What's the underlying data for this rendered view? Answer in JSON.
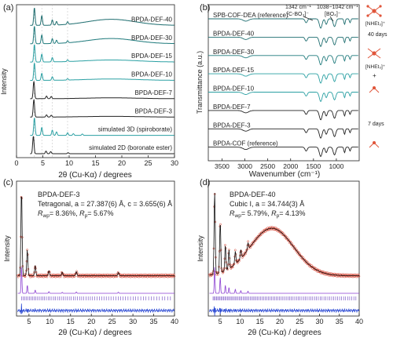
{
  "chart_data": [
    {
      "panel": "(a)",
      "type": "line",
      "xlabel": "2θ (Cu-Kα) / degrees",
      "ylabel": "Intensity",
      "xlim": [
        0,
        30
      ],
      "xticks": [
        0,
        5,
        10,
        15,
        20,
        25,
        30
      ],
      "series": [
        {
          "name": "BPDA-DEF-40",
          "color": "#1f6e70",
          "peaks": [
            [
              3.4,
              1.0
            ],
            [
              4.8,
              0.55
            ],
            [
              6.8,
              0.3
            ],
            [
              7.6,
              0.2
            ],
            [
              9.7,
              0.15
            ]
          ],
          "hump": [
            18,
            4.5,
            0.35
          ]
        },
        {
          "name": "BPDA-DEF-30",
          "color": "#1f7a7c",
          "peaks": [
            [
              3.4,
              1.0
            ],
            [
              4.8,
              0.5
            ],
            [
              6.8,
              0.28
            ],
            [
              7.6,
              0.18
            ],
            [
              9.7,
              0.12
            ]
          ],
          "hump": [
            18,
            4.5,
            0.3
          ]
        },
        {
          "name": "BPDA-DEF-15",
          "color": "#2aa0a3",
          "peaks": [
            [
              3.4,
              1.0
            ],
            [
              4.8,
              0.45
            ],
            [
              6.8,
              0.25
            ],
            [
              9.7,
              0.1
            ]
          ],
          "hump": [
            18,
            5,
            0.12
          ]
        },
        {
          "name": "BPDA-DEF-10",
          "color": "#2aa0a3",
          "peaks": [
            [
              3.4,
              1.0
            ],
            [
              4.8,
              0.4
            ],
            [
              6.8,
              0.2
            ],
            [
              9.7,
              0.08
            ]
          ],
          "hump": [
            18,
            5,
            0.08
          ]
        },
        {
          "name": "BPDA-DEF-7",
          "color": "#222222",
          "peaks": [
            [
              3.3,
              1.0
            ],
            [
              5.7,
              0.15
            ],
            [
              6.6,
              0.12
            ]
          ],
          "hump": [
            18,
            5,
            0.05
          ]
        },
        {
          "name": "BPDA-DEF-3",
          "color": "#222222",
          "peaks": [
            [
              3.3,
              1.0
            ],
            [
              5.7,
              0.12
            ],
            [
              6.6,
              0.1
            ]
          ],
          "hump": [
            18,
            5,
            0.04
          ]
        },
        {
          "name": "simulated 3D (spiroborate)",
          "color": "#2aa0a3",
          "peaks": [
            [
              3.4,
              1.0
            ],
            [
              4.8,
              0.45
            ],
            [
              6.8,
              0.3
            ],
            [
              7.6,
              0.2
            ],
            [
              9.7,
              0.15
            ],
            [
              10.8,
              0.1
            ],
            [
              12.5,
              0.08
            ]
          ],
          "hump": [
            18,
            5,
            0
          ]
        },
        {
          "name": "simulated 2D (boronate ester)",
          "color": "#222222",
          "peaks": [
            [
              3.2,
              1.0
            ],
            [
              5.6,
              0.15
            ],
            [
              6.5,
              0.12
            ],
            [
              9.8,
              0.06
            ]
          ],
          "hump": [
            18,
            5,
            0
          ]
        }
      ]
    },
    {
      "panel": "(b)",
      "type": "line",
      "xlabel": "Wavenumber (cm⁻¹)",
      "ylabel": "Transmittance (a.u.)",
      "xlim": [
        3800,
        500
      ],
      "xticks": [
        3500,
        3000,
        2500,
        2000,
        1500,
        1000
      ],
      "annotations": [
        "1342 cm⁻¹",
        "[C-BO₃]⁻",
        "1038~1042 cm⁻¹",
        "[BO₄]⁻"
      ],
      "side_labels": [
        "[NHEt₃]⁺",
        "40 days",
        "[NHEt₃]⁺",
        "+",
        "7 days"
      ],
      "series": [
        {
          "name": "SPB-COF-DEA (reference)",
          "color": "#1f6e70"
        },
        {
          "name": "BPDA-DEF-40",
          "color": "#1f6e70"
        },
        {
          "name": "BPDA-DEF-30",
          "color": "#1f7a7c"
        },
        {
          "name": "BPDA-DEF-15",
          "color": "#2aa0a3"
        },
        {
          "name": "BPDA-DEF-10",
          "color": "#2aa0a3"
        },
        {
          "name": "BPDA-DEF-7",
          "color": "#222222"
        },
        {
          "name": "BPDA-DEF-3",
          "color": "#222222"
        },
        {
          "name": "BPDA-COF (reference)",
          "color": "#222222"
        }
      ]
    },
    {
      "panel": "(c)",
      "type": "line",
      "title": "BPDA-DEF-3",
      "subtitle": "Tetragonal, a = 27.387(6) Å, c = 3.655(6) Å",
      "fit_text": "R_wp= 8.36%, R_p= 5.67%",
      "xlabel": "2θ (Cu-Kα) / degrees",
      "ylabel": "Intensity",
      "xlim": [
        2,
        40
      ],
      "xticks": [
        5,
        10,
        15,
        20,
        25,
        30,
        35,
        40
      ],
      "peaks": [
        [
          3.2,
          1.0
        ],
        [
          4.6,
          0.3
        ],
        [
          6.5,
          0.12
        ],
        [
          9.8,
          0.06
        ],
        [
          13,
          0.04
        ],
        [
          16.4,
          0.05
        ],
        [
          26.5,
          0.04
        ]
      ]
    },
    {
      "panel": "(d)",
      "type": "line",
      "title": "BPDA-DEF-40",
      "subtitle": "Cubic I, a = 34.744(3) Å",
      "fit_text": "R_wp= 5.79%, R_p= 4.13%",
      "xlabel": "2θ (Cu-Kα) / degrees",
      "ylabel": "Intensity",
      "xlim": [
        2,
        40
      ],
      "xticks": [
        5,
        10,
        15,
        20,
        25,
        30,
        35,
        40
      ],
      "peaks": [
        [
          3.6,
          1.0
        ],
        [
          5.0,
          0.6
        ],
        [
          6.3,
          0.3
        ],
        [
          7.2,
          0.22
        ],
        [
          8.8,
          0.15
        ],
        [
          10.2,
          0.1
        ],
        [
          12.0,
          0.08
        ]
      ],
      "hump": [
        18,
        5.5,
        0.55
      ]
    }
  ]
}
